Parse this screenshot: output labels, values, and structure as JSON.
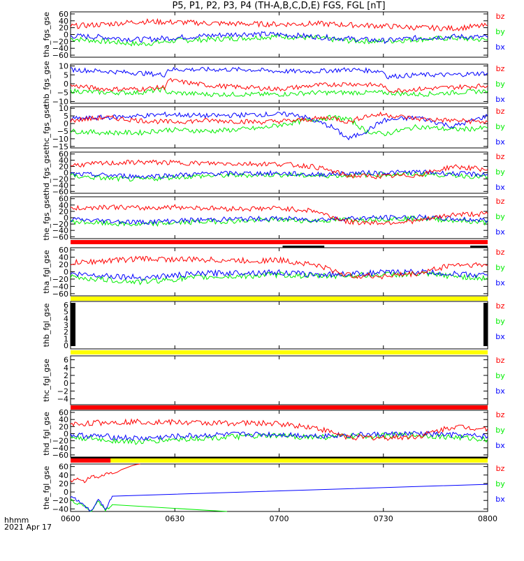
{
  "title": "P5, P1, P2, P3, P4 (TH-A,B,C,D,E) FGS, FGL [nT]",
  "footer": {
    "label": "hhmm",
    "date": "2021 Apr 17"
  },
  "colors": {
    "bx": "#0000ff",
    "by": "#00ee00",
    "bz": "#ff0000",
    "red_bar": "#ff0000",
    "yellow_bar": "#ffff00",
    "black_bar": "#000000"
  },
  "chart_data": [
    {
      "type": "line",
      "ylabel": "tha_fgs_gse",
      "yticks": [
        "60",
        "40",
        "20",
        "0",
        "−20",
        "−40",
        "−60"
      ],
      "ylim": [
        -66,
        66
      ],
      "x_range": [
        "0600",
        "0800"
      ],
      "xticks": [
        "0600",
        "0630",
        "0700",
        "0730",
        "0800"
      ],
      "legend": [
        "bz",
        "by",
        "bx"
      ],
      "series": [
        {
          "name": "bz",
          "x": [
            0,
            10,
            20,
            30,
            40,
            50,
            60,
            70,
            80,
            90,
            100,
            110,
            120
          ],
          "values": [
            24,
            30,
            38,
            36,
            33,
            31,
            30,
            32,
            28,
            25,
            20,
            18,
            26
          ]
        },
        {
          "name": "by",
          "x": [
            0,
            10,
            20,
            30,
            40,
            50,
            60,
            70,
            80,
            90,
            100,
            110,
            120
          ],
          "values": [
            -12,
            -20,
            -28,
            -18,
            -14,
            -10,
            -5,
            -10,
            -18,
            -20,
            -14,
            -10,
            -16
          ]
        },
        {
          "name": "bx",
          "x": [
            0,
            10,
            20,
            30,
            40,
            50,
            60,
            70,
            80,
            90,
            100,
            110,
            120
          ],
          "values": [
            -4,
            -8,
            -15,
            -9,
            -3,
            2,
            0,
            -6,
            -12,
            -18,
            -10,
            -6,
            -8
          ]
        }
      ]
    },
    {
      "type": "line",
      "ylabel": "thb_fgs_gse",
      "yticks": [
        "10",
        "5",
        "0",
        "−5",
        "−10"
      ],
      "ylim": [
        -11,
        11
      ],
      "x_range": [
        "0600",
        "0800"
      ],
      "xticks": [
        "0600",
        "0630",
        "0700",
        "0730",
        "0800"
      ],
      "legend": [
        "bz",
        "by",
        "bx"
      ],
      "series": [
        {
          "name": "bz",
          "x": [
            0,
            10,
            20,
            27,
            28,
            40,
            50,
            60,
            70,
            80,
            90,
            91,
            100,
            110,
            120
          ],
          "values": [
            -1,
            -3,
            -3,
            -2,
            2,
            -1,
            -2,
            -3,
            -1,
            0,
            -1,
            -4,
            -3,
            -2,
            -1
          ]
        },
        {
          "name": "by",
          "x": [
            0,
            10,
            20,
            27,
            28,
            40,
            50,
            60,
            70,
            80,
            90,
            100,
            110,
            120
          ],
          "values": [
            -4,
            -5,
            -5,
            -3,
            -5,
            -6,
            -6,
            -6,
            -5,
            -5,
            -5,
            -6,
            -5,
            -4
          ]
        },
        {
          "name": "bx",
          "x": [
            0,
            10,
            20,
            27,
            28,
            40,
            50,
            60,
            70,
            80,
            90,
            91,
            100,
            110,
            120
          ],
          "values": [
            8,
            7,
            6,
            5,
            8,
            8,
            8,
            7,
            7,
            8,
            7,
            4,
            5,
            5,
            6
          ]
        }
      ]
    },
    {
      "type": "line",
      "ylabel": "thc_fgs_gse",
      "yticks": [
        "10",
        "5",
        "0",
        "−5",
        "−10",
        "−15"
      ],
      "ylim": [
        -16,
        11
      ],
      "x_range": [
        "0600",
        "0800"
      ],
      "xticks": [
        "0600",
        "0630",
        "0700",
        "0730",
        "0800"
      ],
      "legend": [
        "bz",
        "by",
        "bx"
      ],
      "series": [
        {
          "name": "bz",
          "x": [
            0,
            10,
            20,
            28,
            40,
            55,
            65,
            75,
            80,
            85,
            90,
            100,
            110,
            120
          ],
          "values": [
            2,
            4,
            2,
            1,
            2,
            1,
            2,
            4,
            1,
            5,
            6,
            3,
            2,
            1
          ]
        },
        {
          "name": "by",
          "x": [
            0,
            10,
            20,
            28,
            40,
            55,
            65,
            75,
            80,
            85,
            90,
            100,
            110,
            120
          ],
          "values": [
            -5,
            -6,
            -6,
            -4,
            -5,
            -3,
            1,
            4,
            3,
            -5,
            -7,
            -2,
            -4,
            -3
          ]
        },
        {
          "name": "bx",
          "x": [
            0,
            10,
            20,
            28,
            40,
            55,
            65,
            75,
            80,
            85,
            90,
            100,
            110,
            120
          ],
          "values": [
            3,
            4,
            5,
            6,
            5,
            6,
            6,
            -2,
            -10,
            -5,
            2,
            4,
            -2,
            5
          ]
        }
      ]
    },
    {
      "type": "line",
      "ylabel": "thd_fgs_gse",
      "yticks": [
        "60",
        "40",
        "20",
        "0",
        "−20",
        "−40",
        "−60"
      ],
      "ylim": [
        -66,
        66
      ],
      "x_range": [
        "0600",
        "0800"
      ],
      "xticks": [
        "0600",
        "0630",
        "0700",
        "0730",
        "0800"
      ],
      "legend": [
        "bz",
        "by",
        "bx"
      ],
      "series": [
        {
          "name": "bz",
          "x": [
            0,
            10,
            20,
            30,
            40,
            50,
            60,
            70,
            80,
            90,
            100,
            110,
            120
          ],
          "values": [
            24,
            30,
            34,
            32,
            30,
            29,
            28,
            20,
            -10,
            -12,
            -8,
            20,
            10
          ]
        },
        {
          "name": "by",
          "x": [
            0,
            10,
            20,
            30,
            40,
            50,
            60,
            70,
            80,
            90,
            100,
            110,
            120
          ],
          "values": [
            -10,
            -18,
            -22,
            -14,
            -10,
            -8,
            -6,
            -10,
            -8,
            -6,
            -4,
            -8,
            -14
          ]
        },
        {
          "name": "bx",
          "x": [
            0,
            10,
            20,
            30,
            40,
            50,
            60,
            70,
            80,
            90,
            100,
            110,
            120
          ],
          "values": [
            -5,
            -8,
            -12,
            -8,
            -3,
            -2,
            -2,
            -6,
            -2,
            0,
            2,
            -3,
            -6
          ]
        }
      ]
    },
    {
      "type": "line",
      "ylabel": "the_fgs_gse",
      "yticks": [
        "60",
        "40",
        "20",
        "0",
        "−20",
        "−40",
        "−60"
      ],
      "ylim": [
        -66,
        66
      ],
      "x_range": [
        "0600",
        "0800"
      ],
      "xticks": [
        "0600",
        "0630",
        "0700",
        "0730",
        "0800"
      ],
      "legend": [
        "bz",
        "by",
        "bx"
      ],
      "series": [
        {
          "name": "bz",
          "x": [
            0,
            10,
            20,
            30,
            40,
            50,
            60,
            70,
            80,
            90,
            100,
            110,
            120
          ],
          "values": [
            28,
            35,
            30,
            34,
            30,
            28,
            30,
            22,
            -14,
            -16,
            -10,
            10,
            12
          ]
        },
        {
          "name": "by",
          "x": [
            0,
            10,
            20,
            30,
            40,
            50,
            60,
            70,
            80,
            90,
            100,
            110,
            120
          ],
          "values": [
            -12,
            -18,
            -22,
            -16,
            -12,
            -10,
            -6,
            -10,
            -6,
            -4,
            -2,
            -8,
            -16
          ]
        },
        {
          "name": "bx",
          "x": [
            0,
            10,
            20,
            30,
            40,
            50,
            60,
            70,
            80,
            90,
            100,
            110,
            120
          ],
          "values": [
            -6,
            -10,
            -14,
            -10,
            -6,
            -4,
            -3,
            -6,
            -2,
            0,
            2,
            -4,
            -8
          ]
        }
      ]
    },
    {
      "type": "line",
      "ylabel": "tha_fgl_gse",
      "yticks": [
        "60",
        "40",
        "20",
        "0",
        "−20",
        "−40",
        "−60"
      ],
      "ylim": [
        -66,
        66
      ],
      "x_range": [
        "0600",
        "0800"
      ],
      "xticks": [
        "0600",
        "0630",
        "0700",
        "0730",
        "0800"
      ],
      "legend": [
        "bz",
        "by",
        "bx"
      ],
      "series": [
        {
          "name": "bz",
          "x": [
            0,
            10,
            20,
            30,
            40,
            50,
            60,
            70,
            80,
            90,
            100,
            110,
            120
          ],
          "values": [
            24,
            30,
            36,
            34,
            33,
            30,
            32,
            20,
            -10,
            -12,
            -5,
            20,
            18
          ]
        },
        {
          "name": "by",
          "x": [
            0,
            10,
            20,
            30,
            40,
            50,
            60,
            70,
            80,
            90,
            100,
            110,
            120
          ],
          "values": [
            -14,
            -22,
            -28,
            -20,
            -14,
            -12,
            -8,
            -12,
            -10,
            -8,
            -6,
            -12,
            -18
          ]
        },
        {
          "name": "bx",
          "x": [
            0,
            10,
            20,
            30,
            40,
            50,
            60,
            70,
            80,
            90,
            100,
            110,
            120
          ],
          "values": [
            -6,
            -10,
            -16,
            -10,
            -4,
            -2,
            -2,
            -8,
            -6,
            -2,
            0,
            -6,
            -10
          ]
        }
      ]
    },
    {
      "type": "line",
      "ylabel": "thb_fgl_gse",
      "yticks": [
        "6",
        "5",
        "4",
        "3",
        "2",
        "1",
        "0"
      ],
      "ylim": [
        -0.5,
        6.5
      ],
      "x_range": [
        "0600",
        "0800"
      ],
      "xticks": [
        "0600",
        "0630",
        "0700",
        "0730",
        "0800"
      ],
      "legend": [
        "bz",
        "by",
        "bx"
      ],
      "series": []
    },
    {
      "type": "line",
      "ylabel": "thc_fgl_gse",
      "yticks": [
        "6",
        "4",
        "2",
        "0",
        "−2",
        "−4"
      ],
      "ylim": [
        -5.5,
        7
      ],
      "x_range": [
        "0600",
        "0800"
      ],
      "xticks": [
        "0600",
        "0630",
        "0700",
        "0730",
        "0800"
      ],
      "legend": [
        "bz",
        "by",
        "bx"
      ],
      "series": []
    },
    {
      "type": "line",
      "ylabel": "thd_fgl_gse",
      "yticks": [
        "60",
        "40",
        "20",
        "0",
        "−20",
        "−40",
        "−60"
      ],
      "ylim": [
        -66,
        66
      ],
      "x_range": [
        "0600",
        "0800"
      ],
      "xticks": [
        "0600",
        "0630",
        "0700",
        "0730",
        "0800"
      ],
      "legend": [
        "bz",
        "by",
        "bx"
      ],
      "series": [
        {
          "name": "bz",
          "x": [
            0,
            10,
            20,
            30,
            40,
            50,
            60,
            70,
            80,
            90,
            100,
            110,
            120
          ],
          "values": [
            26,
            32,
            34,
            32,
            30,
            30,
            28,
            18,
            -10,
            -12,
            -8,
            20,
            14
          ]
        },
        {
          "name": "by",
          "x": [
            0,
            10,
            20,
            30,
            40,
            50,
            60,
            70,
            80,
            90,
            100,
            110,
            120
          ],
          "values": [
            -10,
            -18,
            -24,
            -16,
            -12,
            -8,
            -6,
            -10,
            -8,
            -6,
            -4,
            -10,
            -16
          ]
        },
        {
          "name": "bx",
          "x": [
            0,
            10,
            20,
            30,
            40,
            50,
            60,
            70,
            80,
            90,
            100,
            110,
            120
          ],
          "values": [
            -4,
            -8,
            -14,
            -8,
            -4,
            -2,
            -2,
            -6,
            -4,
            -2,
            0,
            -4,
            -8
          ]
        }
      ]
    },
    {
      "type": "line",
      "ylabel": "the_fgl_gse",
      "yticks": [
        "60",
        "40",
        "20",
        "0",
        "−20",
        "−40"
      ],
      "ylim": [
        -46,
        66
      ],
      "x_range": [
        "0600",
        "0800"
      ],
      "xticks": [
        "0600",
        "0630",
        "0700",
        "0730",
        "0800"
      ],
      "legend": [
        "bz",
        "by",
        "bx"
      ],
      "series": [
        {
          "name": "bz",
          "x": [
            0,
            2,
            4,
            6,
            8,
            10,
            12,
            20
          ],
          "values": [
            26,
            30,
            25,
            38,
            32,
            42,
            45,
            66
          ]
        },
        {
          "name": "by",
          "x": [
            0,
            2,
            4,
            6,
            8,
            10,
            12,
            45
          ],
          "values": [
            -18,
            -28,
            -32,
            -48,
            -20,
            -45,
            -30,
            -46
          ]
        },
        {
          "name": "bx",
          "x": [
            0,
            2,
            4,
            6,
            8,
            10,
            12,
            120
          ],
          "values": [
            -10,
            -20,
            -32,
            -46,
            -15,
            -40,
            -10,
            18
          ]
        }
      ]
    }
  ]
}
